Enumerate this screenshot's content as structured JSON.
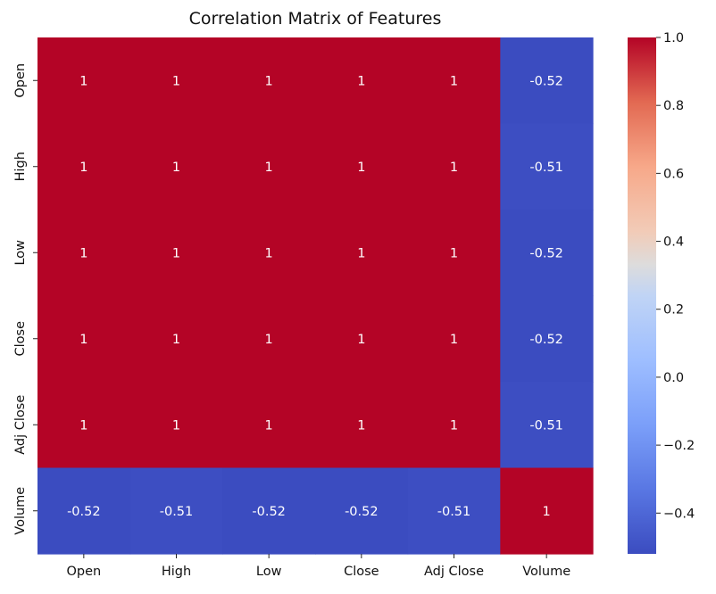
{
  "chart_data": {
    "type": "heatmap",
    "title": "Correlation Matrix of Features",
    "xlabel": "",
    "ylabel": "",
    "x_categories": [
      "Open",
      "High",
      "Low",
      "Close",
      "Adj Close",
      "Volume"
    ],
    "y_categories": [
      "Open",
      "High",
      "Low",
      "Close",
      "Adj Close",
      "Volume"
    ],
    "values": [
      [
        1,
        1,
        1,
        1,
        1,
        -0.52
      ],
      [
        1,
        1,
        1,
        1,
        1,
        -0.51
      ],
      [
        1,
        1,
        1,
        1,
        1,
        -0.52
      ],
      [
        1,
        1,
        1,
        1,
        1,
        -0.52
      ],
      [
        1,
        1,
        1,
        1,
        1,
        -0.51
      ],
      [
        -0.52,
        -0.51,
        -0.52,
        -0.52,
        -0.51,
        1
      ]
    ],
    "value_labels": [
      [
        "1",
        "1",
        "1",
        "1",
        "1",
        "-0.52"
      ],
      [
        "1",
        "1",
        "1",
        "1",
        "1",
        "-0.51"
      ],
      [
        "1",
        "1",
        "1",
        "1",
        "1",
        "-0.52"
      ],
      [
        "1",
        "1",
        "1",
        "1",
        "1",
        "-0.52"
      ],
      [
        "1",
        "1",
        "1",
        "1",
        "1",
        "-0.51"
      ],
      [
        "-0.52",
        "-0.51",
        "-0.52",
        "-0.52",
        "-0.51",
        "1"
      ]
    ],
    "colormap": "coolwarm",
    "colorbar": {
      "range": [
        -0.52,
        1.0
      ],
      "ticks": [
        1.0,
        0.8,
        0.6,
        0.4,
        0.2,
        0.0,
        -0.2,
        -0.4
      ],
      "tick_labels": [
        "1.0",
        "0.8",
        "0.6",
        "0.4",
        "0.2",
        "0.0",
        "−0.2",
        "−0.4"
      ]
    },
    "colors": {
      "low": "#3b4cc0",
      "mid": "#dddddd",
      "high": "#b40426"
    }
  }
}
